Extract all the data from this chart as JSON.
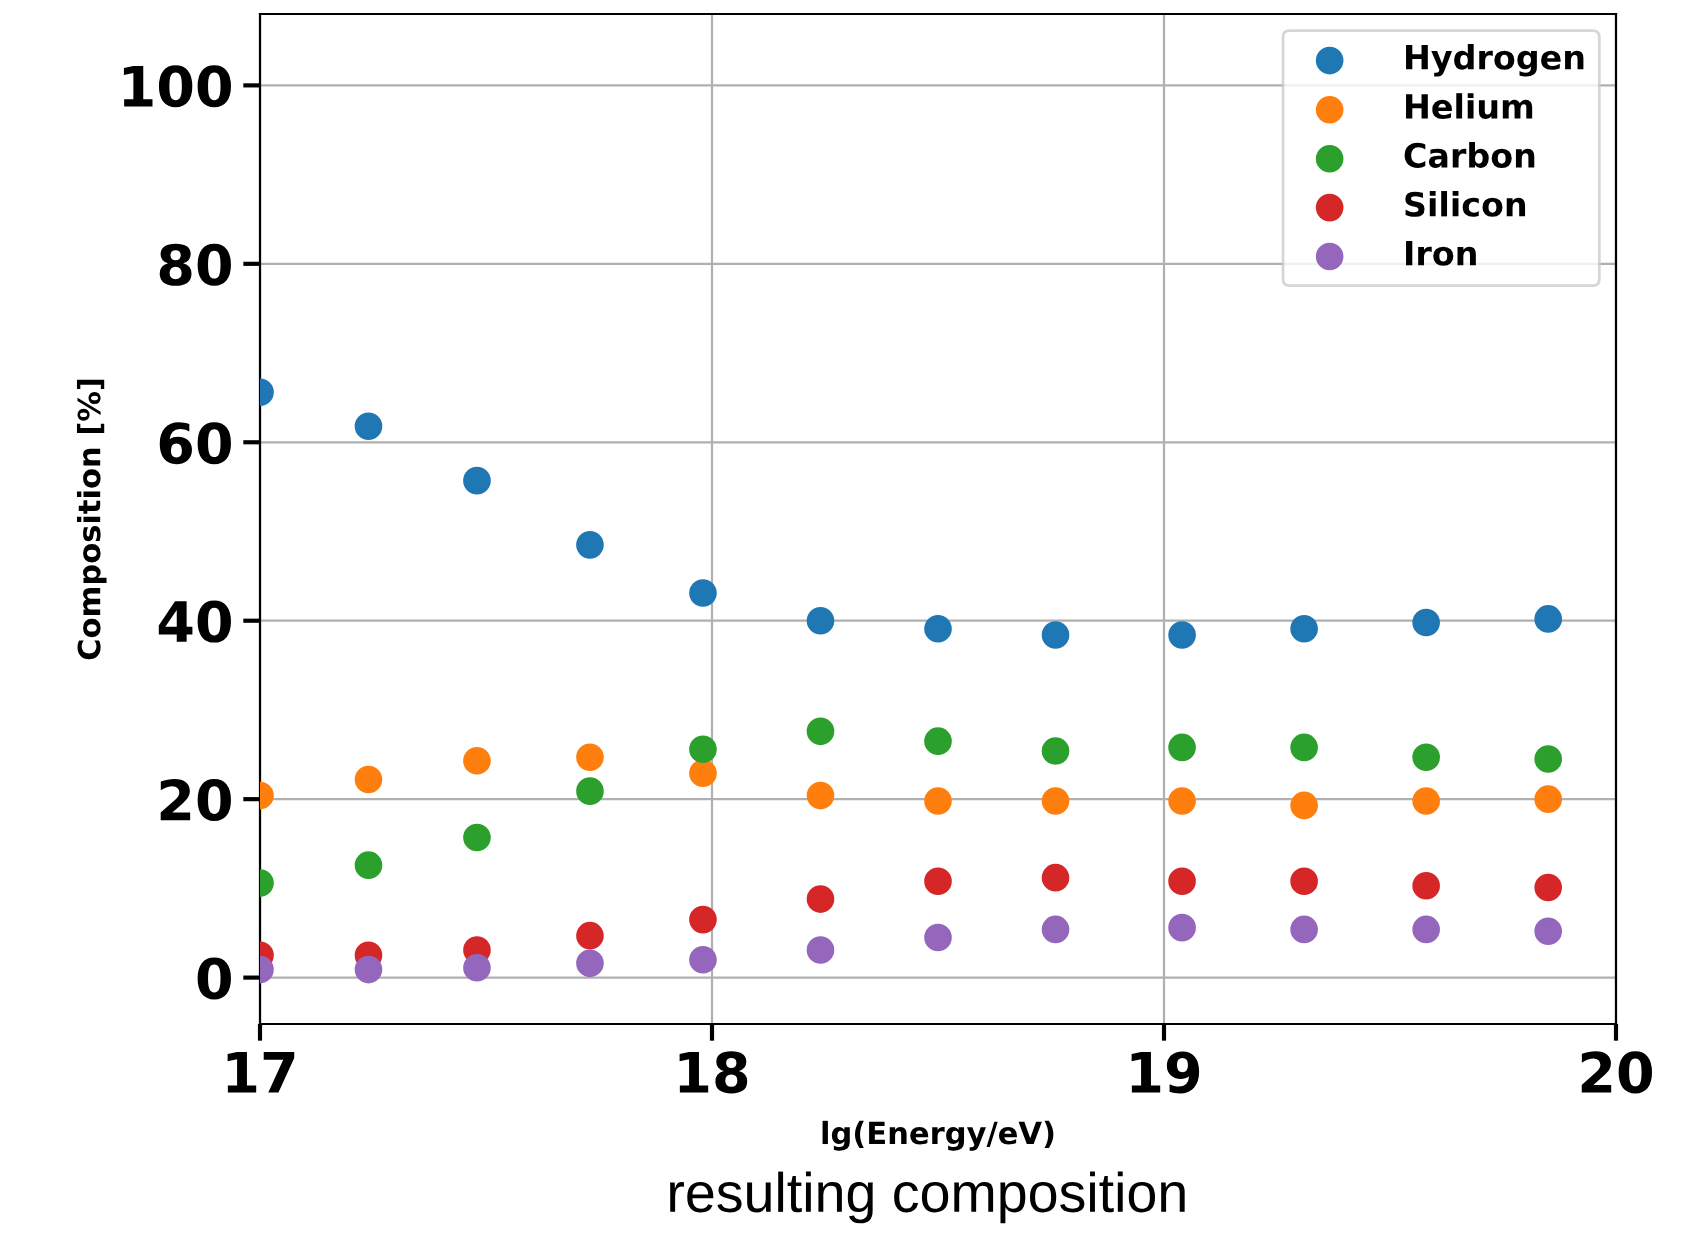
{
  "chart_data": {
    "type": "scatter",
    "xlabel": "lg(Energy/eV)",
    "ylabel": "Composition [%]",
    "annotations": [
      "resulting composition"
    ],
    "x": [
      17.0,
      17.24,
      17.48,
      17.73,
      17.98,
      18.24,
      18.5,
      18.76,
      19.04,
      19.31,
      19.58,
      19.85
    ],
    "series": [
      {
        "name": "Hydrogen",
        "color": "#1f77b4",
        "values": [
          65.6,
          61.8,
          55.7,
          48.5,
          43.1,
          40.0,
          39.1,
          38.4,
          38.4,
          39.1,
          39.8,
          40.2
        ]
      },
      {
        "name": "Helium",
        "color": "#ff7f0e",
        "values": [
          20.4,
          22.2,
          24.3,
          24.7,
          22.9,
          20.4,
          19.8,
          19.8,
          19.8,
          19.3,
          19.8,
          20.0
        ]
      },
      {
        "name": "Carbon",
        "color": "#2ca02c",
        "values": [
          10.6,
          12.6,
          15.7,
          20.9,
          25.6,
          27.6,
          26.5,
          25.4,
          25.8,
          25.8,
          24.7,
          24.5
        ]
      },
      {
        "name": "Silicon",
        "color": "#d62728",
        "values": [
          2.5,
          2.5,
          3.1,
          4.7,
          6.5,
          8.8,
          10.8,
          11.2,
          10.8,
          10.8,
          10.3,
          10.1
        ]
      },
      {
        "name": "Iron",
        "color": "#9467bd",
        "values": [
          0.9,
          0.9,
          1.1,
          1.6,
          2.0,
          3.1,
          4.5,
          5.4,
          5.6,
          5.4,
          5.4,
          5.2
        ]
      }
    ],
    "xlim": [
      17,
      20
    ],
    "xticks": [
      17,
      18,
      19,
      20
    ],
    "ylim": [
      -5.2,
      108
    ],
    "yticks": [
      0,
      20,
      40,
      60,
      80,
      100
    ],
    "grid": true,
    "legend": "top right",
    "marker": "circle"
  }
}
